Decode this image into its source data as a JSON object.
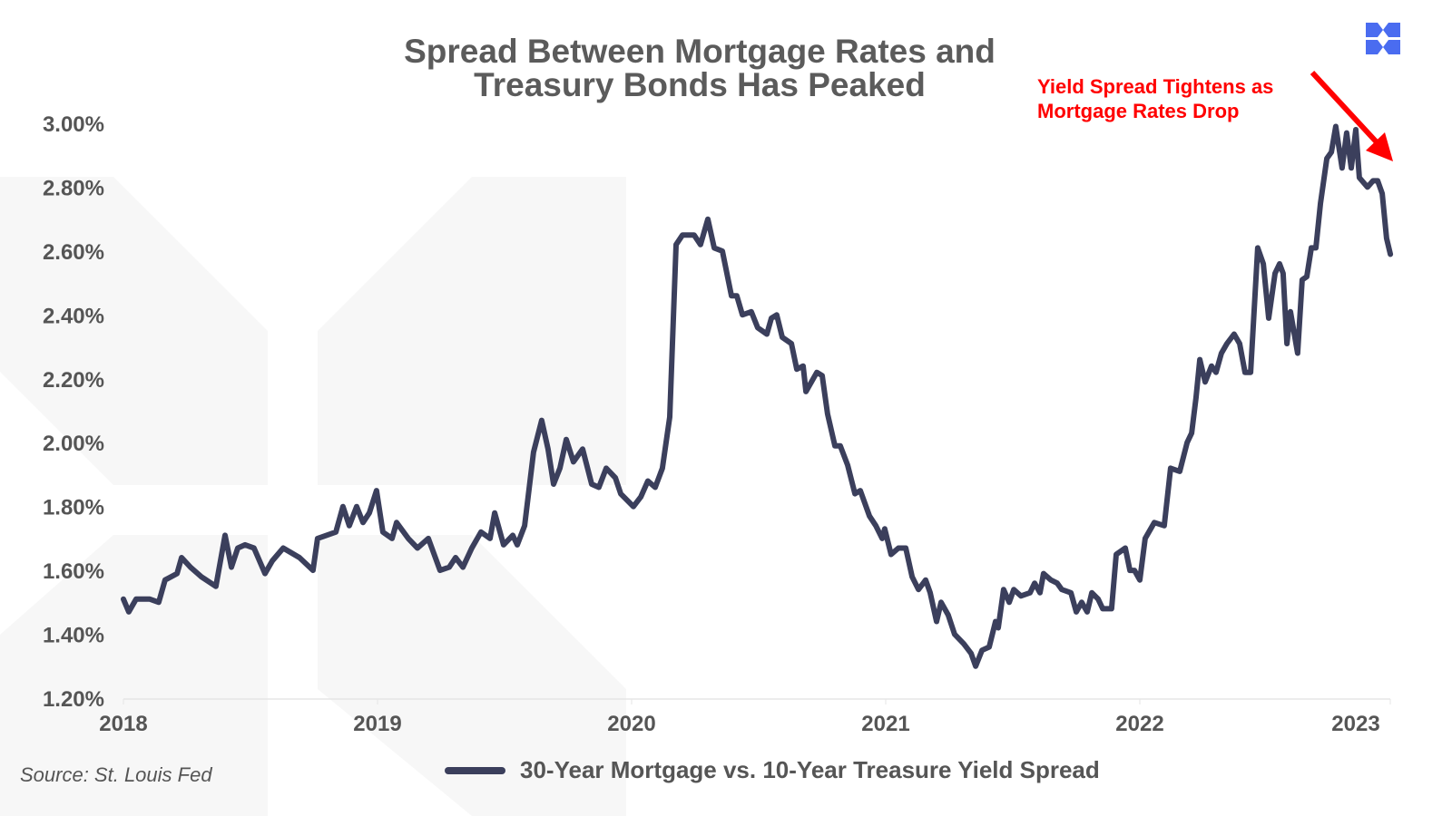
{
  "chart_data": {
    "type": "line",
    "title": [
      "Spread Between Mortgage Rates and",
      "Treasury Bonds Has Peaked"
    ],
    "annotation": [
      "Yield Spread Tightens as",
      "Mortgage Rates Drop"
    ],
    "source": "Source: St. Louis Fed",
    "xlabel": "",
    "ylabel": "",
    "xlim": [
      2018,
      2023.0
    ],
    "ylim": [
      1.2,
      3.0
    ],
    "x_ticks": [
      2018,
      2019,
      2020,
      2021,
      2022,
      2023
    ],
    "x_tick_labels": [
      "2018",
      "2019",
      "2020",
      "2021",
      "2022",
      "2023"
    ],
    "y_ticks": [
      1.2,
      1.4,
      1.6,
      1.8,
      2.0,
      2.2,
      2.4,
      2.6,
      2.8,
      3.0
    ],
    "y_tick_labels": [
      "1.20%",
      "1.40%",
      "1.60%",
      "1.80%",
      "2.00%",
      "2.20%",
      "2.40%",
      "2.60%",
      "2.80%",
      "3.00%"
    ],
    "grid": false,
    "legend_position": "bottom",
    "colors": {
      "series": "#3b3f5c",
      "annotation": "#ff0000",
      "logo": "#4a6cf0",
      "text": "#555555"
    },
    "series": [
      {
        "name": "30-Year Mortgage vs. 10-Year Treasure Yield Spread",
        "x": [
          2018.0,
          2018.021,
          2018.05,
          2018.104,
          2018.139,
          2018.164,
          2018.211,
          2018.229,
          2018.264,
          2018.307,
          2018.364,
          2018.4,
          2018.425,
          2018.45,
          2018.479,
          2018.514,
          2018.557,
          2018.586,
          2018.629,
          2018.693,
          2018.746,
          2018.764,
          2018.836,
          2018.864,
          2018.889,
          2018.918,
          2018.943,
          2018.968,
          2018.996,
          2019.021,
          2019.057,
          2019.075,
          2019.121,
          2019.157,
          2019.2,
          2019.246,
          2019.282,
          2019.307,
          2019.336,
          2019.371,
          2019.407,
          2019.443,
          2019.461,
          2019.496,
          2019.532,
          2019.55,
          2019.579,
          2019.614,
          2019.646,
          2019.671,
          2019.693,
          2019.718,
          2019.743,
          2019.771,
          2019.807,
          2019.843,
          2019.871,
          2019.9,
          2019.936,
          2019.957,
          2020.007,
          2020.036,
          2020.064,
          2020.093,
          2020.121,
          2020.15,
          2020.175,
          2020.2,
          2020.246,
          2020.271,
          2020.3,
          2020.325,
          2020.357,
          2020.393,
          2020.414,
          2020.436,
          2020.471,
          2020.496,
          2020.532,
          2020.55,
          2020.571,
          2020.593,
          2020.629,
          2020.65,
          2020.675,
          2020.686,
          2020.729,
          2020.75,
          2020.771,
          2020.8,
          2020.821,
          2020.85,
          2020.879,
          2020.9,
          2020.936,
          2020.961,
          2020.986,
          2020.996,
          2021.021,
          2021.05,
          2021.079,
          2021.104,
          2021.129,
          2021.157,
          2021.175,
          2021.2,
          2021.218,
          2021.246,
          2021.271,
          2021.307,
          2021.336,
          2021.354,
          2021.379,
          2021.407,
          2021.432,
          2021.443,
          2021.464,
          2021.486,
          2021.504,
          2021.532,
          2021.568,
          2021.586,
          2021.607,
          2021.621,
          2021.65,
          2021.675,
          2021.693,
          2021.729,
          2021.75,
          2021.771,
          2021.793,
          2021.811,
          2021.836,
          2021.854,
          2021.889,
          2021.907,
          2021.943,
          2021.961,
          2021.979,
          2022.0,
          2022.021,
          2022.057,
          2022.096,
          2022.121,
          2022.157,
          2022.186,
          2022.204,
          2022.221,
          2022.236,
          2022.257,
          2022.282,
          2022.3,
          2022.321,
          2022.343,
          2022.371,
          2022.393,
          2022.414,
          2022.436,
          2022.464,
          2022.486,
          2022.507,
          2022.532,
          2022.55,
          2022.564,
          2022.579,
          2022.593,
          2022.621,
          2022.639,
          2022.657,
          2022.675,
          2022.693,
          2022.711,
          2022.736,
          2022.754,
          2022.771,
          2022.796,
          2022.814,
          2022.832,
          2022.85,
          2022.864,
          2022.896,
          2022.918,
          2022.936,
          2022.954,
          2022.971,
          2022.986
        ],
        "y": [
          1.51,
          1.47,
          1.51,
          1.51,
          1.5,
          1.57,
          1.59,
          1.64,
          1.61,
          1.58,
          1.55,
          1.71,
          1.61,
          1.67,
          1.68,
          1.67,
          1.59,
          1.63,
          1.67,
          1.64,
          1.6,
          1.7,
          1.72,
          1.8,
          1.74,
          1.8,
          1.75,
          1.78,
          1.85,
          1.72,
          1.7,
          1.75,
          1.7,
          1.67,
          1.7,
          1.6,
          1.61,
          1.64,
          1.61,
          1.67,
          1.72,
          1.7,
          1.78,
          1.68,
          1.71,
          1.68,
          1.74,
          1.97,
          2.07,
          1.98,
          1.87,
          1.92,
          2.01,
          1.94,
          1.98,
          1.87,
          1.86,
          1.92,
          1.89,
          1.84,
          1.8,
          1.83,
          1.88,
          1.86,
          1.92,
          2.08,
          2.62,
          2.65,
          2.65,
          2.62,
          2.7,
          2.61,
          2.6,
          2.46,
          2.46,
          2.4,
          2.41,
          2.36,
          2.34,
          2.39,
          2.4,
          2.33,
          2.31,
          2.23,
          2.24,
          2.16,
          2.22,
          2.21,
          2.09,
          1.99,
          1.99,
          1.93,
          1.84,
          1.85,
          1.77,
          1.74,
          1.7,
          1.73,
          1.65,
          1.67,
          1.67,
          1.58,
          1.54,
          1.57,
          1.53,
          1.44,
          1.5,
          1.46,
          1.4,
          1.37,
          1.34,
          1.3,
          1.35,
          1.36,
          1.44,
          1.42,
          1.54,
          1.5,
          1.54,
          1.52,
          1.53,
          1.56,
          1.53,
          1.59,
          1.57,
          1.56,
          1.54,
          1.53,
          1.47,
          1.5,
          1.47,
          1.53,
          1.51,
          1.48,
          1.48,
          1.65,
          1.67,
          1.6,
          1.6,
          1.57,
          1.7,
          1.75,
          1.74,
          1.92,
          1.91,
          2.0,
          2.03,
          2.14,
          2.26,
          2.19,
          2.24,
          2.22,
          2.28,
          2.31,
          2.34,
          2.31,
          2.22,
          2.22,
          2.61,
          2.56,
          2.39,
          2.53,
          2.56,
          2.53,
          2.31,
          2.41,
          2.28,
          2.51,
          2.52,
          2.61,
          2.61,
          2.75,
          2.89,
          2.91,
          2.99,
          2.86,
          2.97,
          2.86,
          2.98,
          2.83,
          2.8,
          2.82,
          2.82,
          2.78,
          2.64,
          2.59
        ]
      }
    ]
  }
}
